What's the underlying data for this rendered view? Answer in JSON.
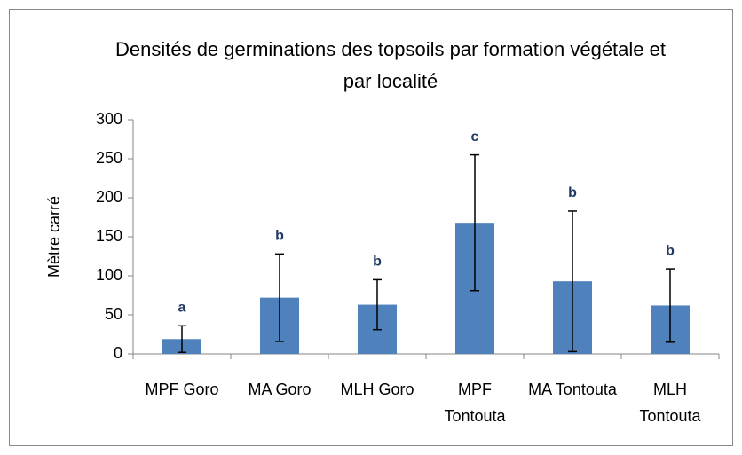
{
  "chart_data": {
    "type": "bar",
    "title": "Densités de germinations  des topsoils par formation végétale et par localité",
    "y_label": "Mètre carré",
    "categories": [
      "MPF Goro",
      "MA Goro",
      "MLH Goro",
      "MPF Tontouta",
      "MA Tontouta",
      "MLH Tontouta"
    ],
    "values": [
      19,
      72,
      63,
      168,
      93,
      62
    ],
    "errors": [
      17,
      56,
      32,
      87,
      90,
      47
    ],
    "annotations": [
      "a",
      "b",
      "b",
      "c",
      "b",
      "b"
    ],
    "color": "#4f81bd",
    "ylim": [
      0,
      300
    ],
    "yticks": [
      0,
      50,
      100,
      150,
      200,
      250,
      300
    ],
    "grid": false
  }
}
